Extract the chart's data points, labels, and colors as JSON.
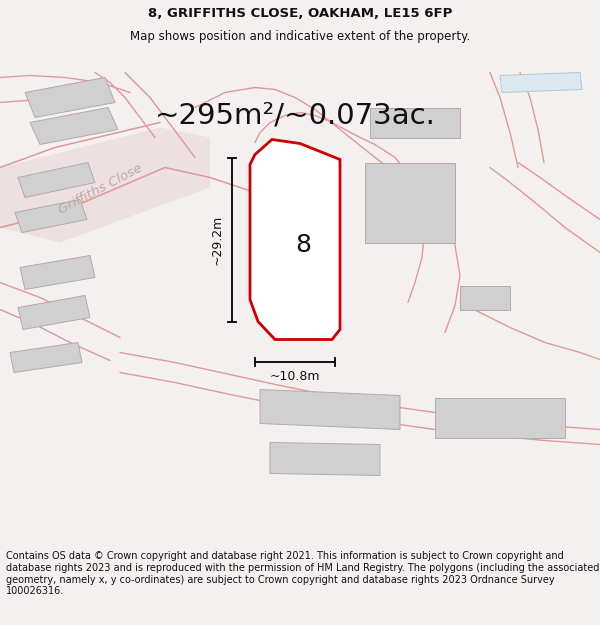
{
  "title_line1": "8, GRIFFITHS CLOSE, OAKHAM, LE15 6FP",
  "title_line2": "Map shows position and indicative extent of the property.",
  "area_label": "~295m²/~0.073ac.",
  "plot_number": "8",
  "dim_height": "~29.2m",
  "dim_width": "~10.8m",
  "street_label": "Griffiths Close",
  "footer_text": "Contains OS data © Crown copyright and database right 2021. This information is subject to Crown copyright and database rights 2023 and is reproduced with the permission of HM Land Registry. The polygons (including the associated geometry, namely x, y co-ordinates) are subject to Crown copyright and database rights 2023 Ordnance Survey 100026316.",
  "bg_color": "#f5f0f0",
  "map_bg": "#f0eded",
  "plot_fill": "#ffffff",
  "plot_edge": "#cc0000",
  "road_lc": "#e09898",
  "building_fc": "#d0d0d0",
  "building_ec": "#b8a8a8",
  "title_fontsize": 9.5,
  "subtitle_fontsize": 8.5,
  "area_fontsize": 21,
  "plot_num_fontsize": 18,
  "footer_fontsize": 7.0,
  "street_fontsize": 9.5
}
